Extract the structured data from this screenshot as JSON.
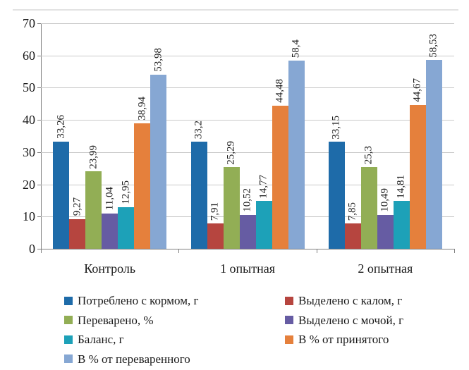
{
  "figure": {
    "background": "#FFFFFF",
    "text_color": "#1A1A1A",
    "axis_color": "#808080",
    "gridline_color": "#C9C9C9"
  },
  "chart_data": {
    "type": "bar",
    "title": "",
    "xlabel": "",
    "ylabel": "",
    "categories": [
      "Контроль",
      "1 опытная",
      "2 опытная"
    ],
    "series": [
      {
        "name": "Потреблено с кормом, г",
        "color": "#1E6BA9",
        "values": [
          33.26,
          33.2,
          33.15
        ],
        "labels": [
          "33,26",
          "33,2",
          "33,15"
        ]
      },
      {
        "name": "Выделено с калом, г",
        "color": "#B6453F",
        "values": [
          9.27,
          7.91,
          7.85
        ],
        "labels": [
          "9,27",
          "7,91",
          "7,85"
        ]
      },
      {
        "name": "Переварено, %",
        "color": "#92AE55",
        "values": [
          23.99,
          25.29,
          25.3
        ],
        "labels": [
          "23,99",
          "25,29",
          "25,3"
        ]
      },
      {
        "name": "Выделено с мочой, г",
        "color": "#665CA3",
        "values": [
          11.04,
          10.52,
          10.49
        ],
        "labels": [
          "11,04",
          "10,52",
          "10,49"
        ]
      },
      {
        "name": "Баланс, г",
        "color": "#1DA1B8",
        "values": [
          12.95,
          14.77,
          14.81
        ],
        "labels": [
          "12,95",
          "14,77",
          "14,81"
        ]
      },
      {
        "name": "В % от принятого",
        "color": "#E5803C",
        "values": [
          38.94,
          44.48,
          44.67
        ],
        "labels": [
          "38,94",
          "44,48",
          "44,67"
        ]
      },
      {
        "name": "В % от переваренного",
        "color": "#86A7D3",
        "values": [
          53.98,
          58.4,
          58.53
        ],
        "labels": [
          "53,98",
          "58,4",
          "58,53"
        ]
      }
    ],
    "y_axis": {
      "min": 0,
      "max": 70,
      "step": 10,
      "tick_labels": [
        "0",
        "10",
        "20",
        "30",
        "40",
        "50",
        "60",
        "70"
      ]
    },
    "grid": true,
    "value_labels_rotated": true,
    "legend_position": "bottom",
    "legend_columns": 2
  }
}
